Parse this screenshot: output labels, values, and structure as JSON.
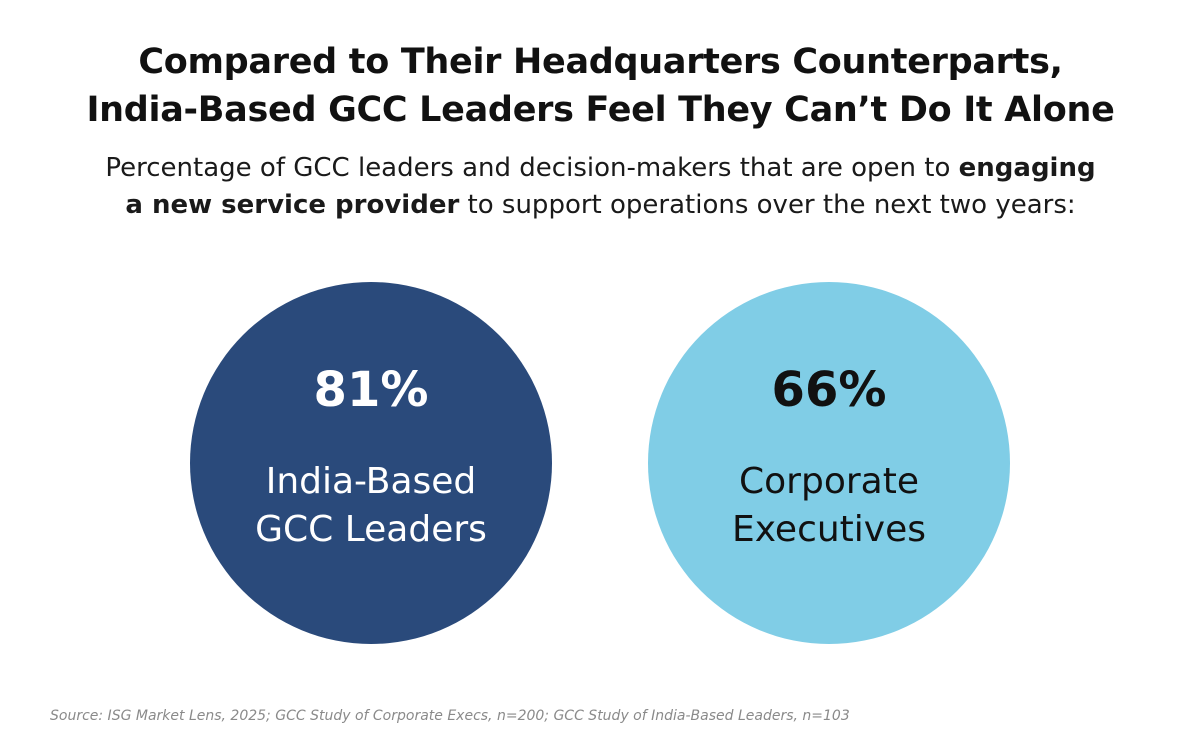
{
  "title": {
    "line1": "Compared to Their Headquarters Counterparts,",
    "line2": "India-Based GCC Leaders Feel They Can’t Do It Alone"
  },
  "subtitle": {
    "part1": "Percentage of GCC leaders and decision-makers that are open to ",
    "bold1": "engaging",
    "bold2": "a new service provider",
    "part2": " to support operations over the next two years:"
  },
  "colors": {
    "india": "#2a4a7b",
    "corporate": "#80cde6",
    "india_text": "#ffffff",
    "corporate_text": "#111111"
  },
  "chart_data": {
    "type": "table",
    "items": [
      {
        "value_label": "81%",
        "value": 81,
        "label_line1": "India-Based",
        "label_line2": "GCC Leaders"
      },
      {
        "value_label": "66%",
        "value": 66,
        "label_line1": "Corporate",
        "label_line2": "Executives"
      }
    ]
  },
  "source": "Source: ISG Market Lens, 2025; GCC Study of Corporate Execs, n=200; GCC Study of India-Based Leaders, n=103"
}
